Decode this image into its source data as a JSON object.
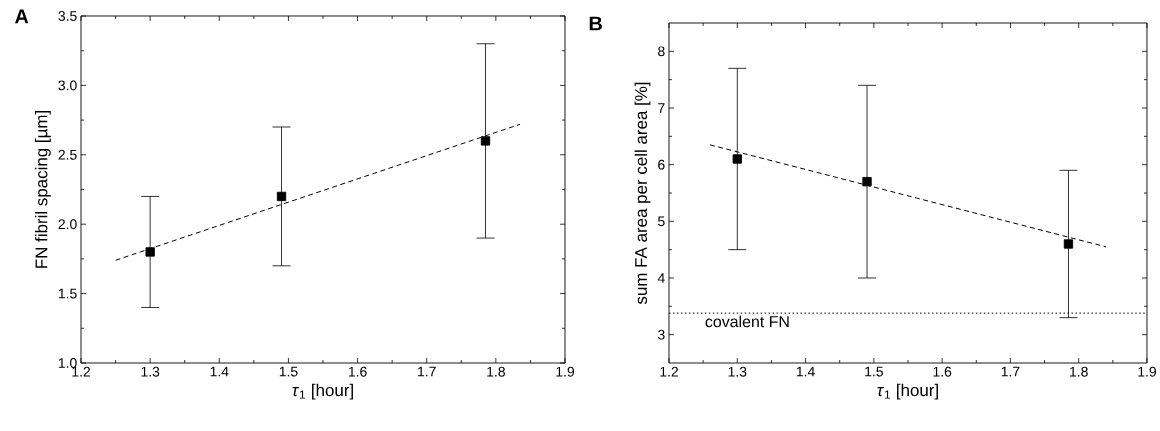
{
  "chart_data": [
    {
      "type": "scatter",
      "title": "A",
      "xlabel": "*τ*$_{1}$  [hour]",
      "ylabel": "FN fibril spacing  [µm]",
      "xlim": [
        1.2,
        1.9
      ],
      "xticks": [
        1.2,
        1.3,
        1.4,
        1.5,
        1.6,
        1.7,
        1.8,
        1.9
      ],
      "ylim": [
        1.0,
        3.5
      ],
      "yticks": [
        {
          "value": 1.0,
          "label": "1.0"
        },
        1.5,
        {
          "value": 2.0,
          "label": "2.0"
        },
        2.5,
        {
          "value": 3.0,
          "label": "3.0"
        },
        3.5
      ],
      "series": [
        {
          "color": "#000000",
          "marker": "square",
          "x": [
            1.3,
            1.49,
            1.785
          ],
          "values": [
            1.8,
            2.2,
            2.6
          ],
          "errors": [
            0.4,
            0.5,
            0.7
          ]
        },
        {
          "type": "line",
          "color": "#000000",
          "line_style": "dashed",
          "x": [
            1.25,
            1.835
          ],
          "values": [
            1.74,
            2.72
          ]
        }
      ]
    },
    {
      "type": "scatter",
      "title": "B",
      "xlabel": "*τ*$_{1}$  [hour]",
      "ylabel": "sum FA area per cell area  [%]",
      "xlim": [
        1.2,
        1.9
      ],
      "xticks": [
        1.2,
        1.3,
        1.4,
        1.5,
        1.6,
        1.7,
        1.8,
        1.9
      ],
      "ylim": [
        2.5,
        8.5
      ],
      "yticks": [
        3,
        4,
        5,
        6,
        7,
        8
      ],
      "series": [
        {
          "color": "#000000",
          "marker": "square",
          "x": [
            1.3,
            1.49,
            1.785
          ],
          "values": [
            6.1,
            5.7,
            4.6
          ],
          "errors": [
            1.6,
            1.7,
            1.3
          ]
        },
        {
          "type": "line",
          "color": "#000000",
          "line_style": "dashed",
          "x": [
            1.26,
            1.84
          ],
          "values": [
            6.35,
            4.55
          ]
        }
      ],
      "ref_lines": [
        {
          "axis": "y",
          "value": 3.38,
          "label": "covalent FN",
          "color": "#000000",
          "line_style": "dotted"
        }
      ]
    }
  ]
}
